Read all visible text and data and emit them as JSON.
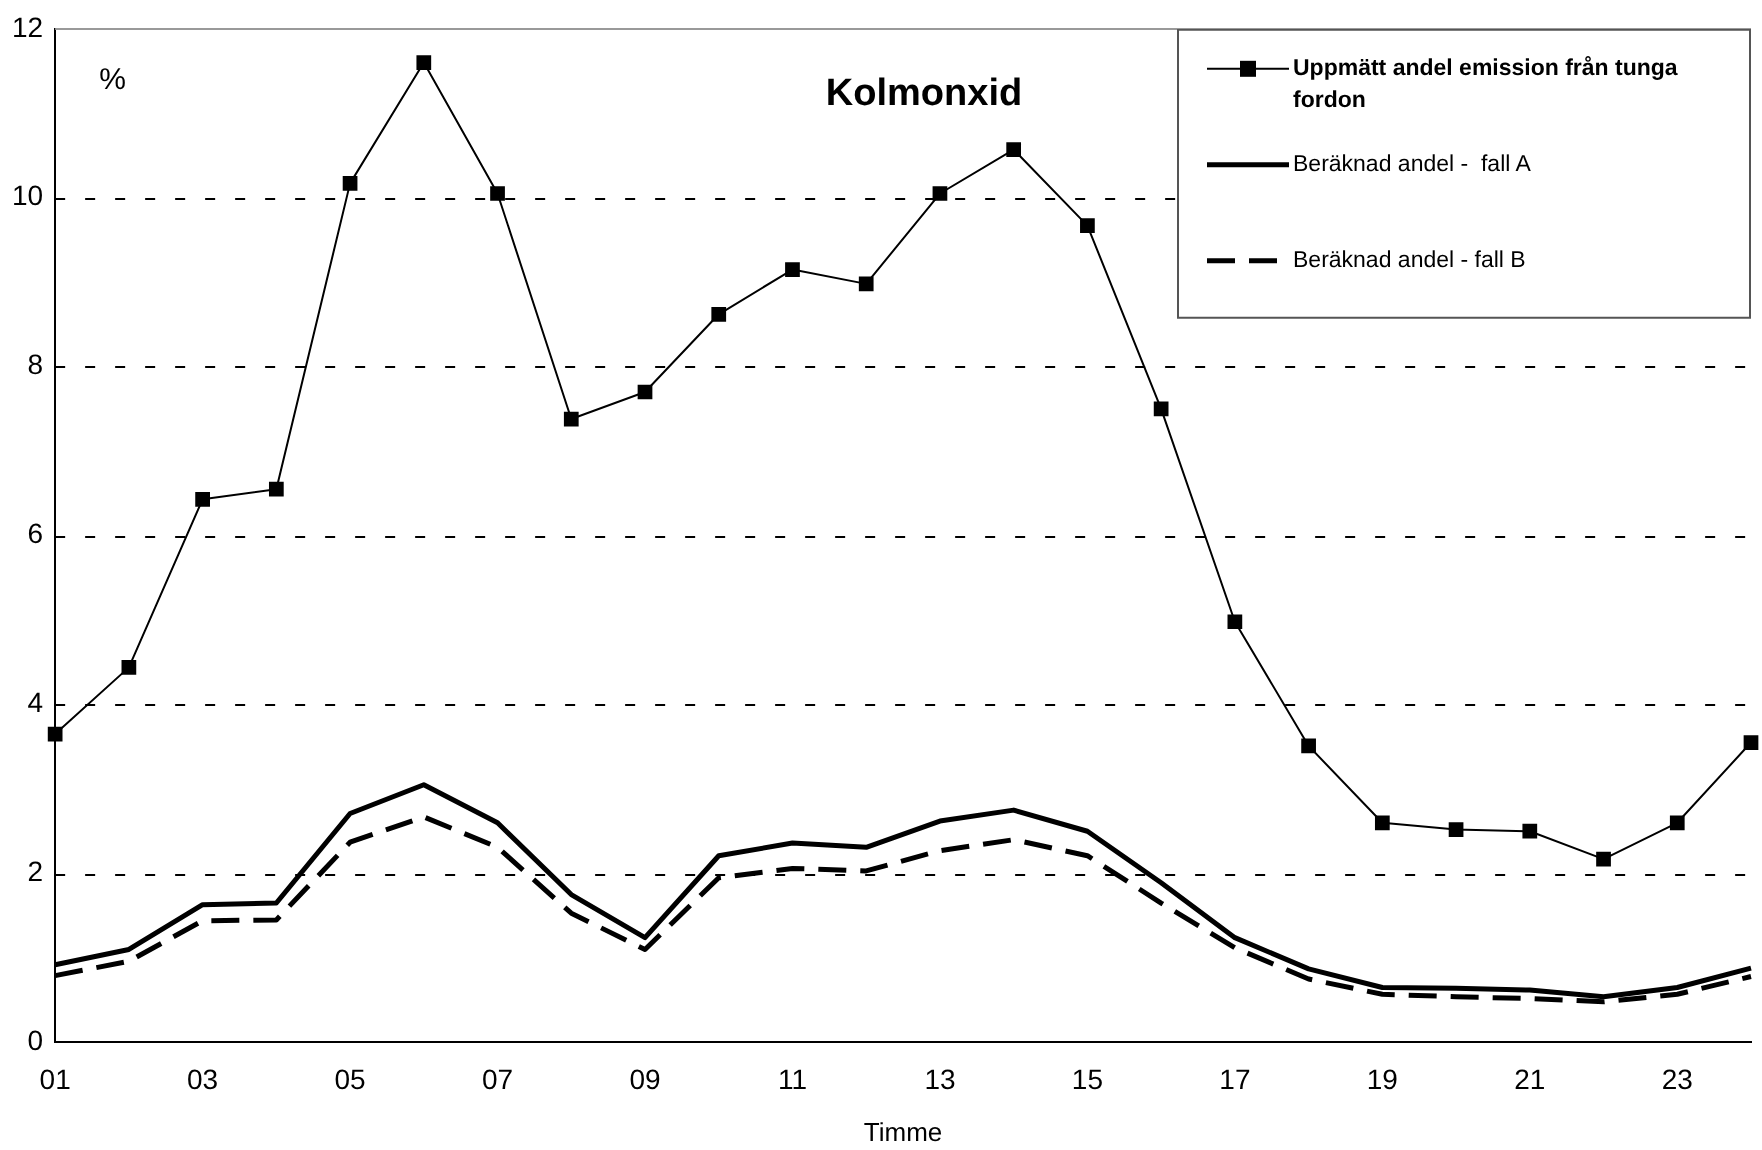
{
  "chart_data": {
    "type": "line",
    "title": "Kolmonxid",
    "xlabel": "Timme",
    "ylabel": "%",
    "categories": [
      "01",
      null,
      "03",
      null,
      "05",
      null,
      "07",
      null,
      "09",
      null,
      "11",
      null,
      "13",
      null,
      "15",
      null,
      "17",
      null,
      "19",
      null,
      "21",
      null,
      "23",
      null
    ],
    "series": [
      {
        "name": "Uppmätt andel emission från tunga fordon",
        "color": "#000000",
        "marker": "square",
        "line_style": "solid",
        "values": [
          3.65,
          4.44,
          6.43,
          6.55,
          10.17,
          11.6,
          10.05,
          7.38,
          7.7,
          8.62,
          9.15,
          8.98,
          10.05,
          10.57,
          9.67,
          7.5,
          4.98,
          3.51,
          2.6,
          2.52,
          2.5,
          2.17,
          2.6,
          3.55
        ]
      },
      {
        "name": "Beräknad andel -  fall A",
        "color": "#000000",
        "marker": "none",
        "line_style": "solid",
        "values": [
          0.92,
          1.1,
          1.63,
          1.65,
          2.71,
          3.05,
          2.6,
          1.75,
          1.24,
          2.21,
          2.36,
          2.31,
          2.62,
          2.75,
          2.5,
          1.89,
          1.24,
          0.87,
          0.65,
          0.64,
          0.62,
          0.54,
          0.65,
          0.88
        ]
      },
      {
        "name": "Beräknad andel - fall B",
        "color": "#000000",
        "marker": "none",
        "line_style": "dashed",
        "values": [
          0.79,
          0.96,
          1.44,
          1.45,
          2.37,
          2.67,
          2.31,
          1.53,
          1.1,
          1.95,
          2.06,
          2.03,
          2.27,
          2.4,
          2.21,
          1.65,
          1.12,
          0.75,
          0.57,
          0.54,
          0.52,
          0.48,
          0.57,
          0.78
        ]
      }
    ],
    "ylim": [
      0,
      12
    ],
    "yticks": [
      0,
      2,
      4,
      6,
      8,
      10,
      12
    ],
    "grid": "y",
    "legend": "top right"
  }
}
